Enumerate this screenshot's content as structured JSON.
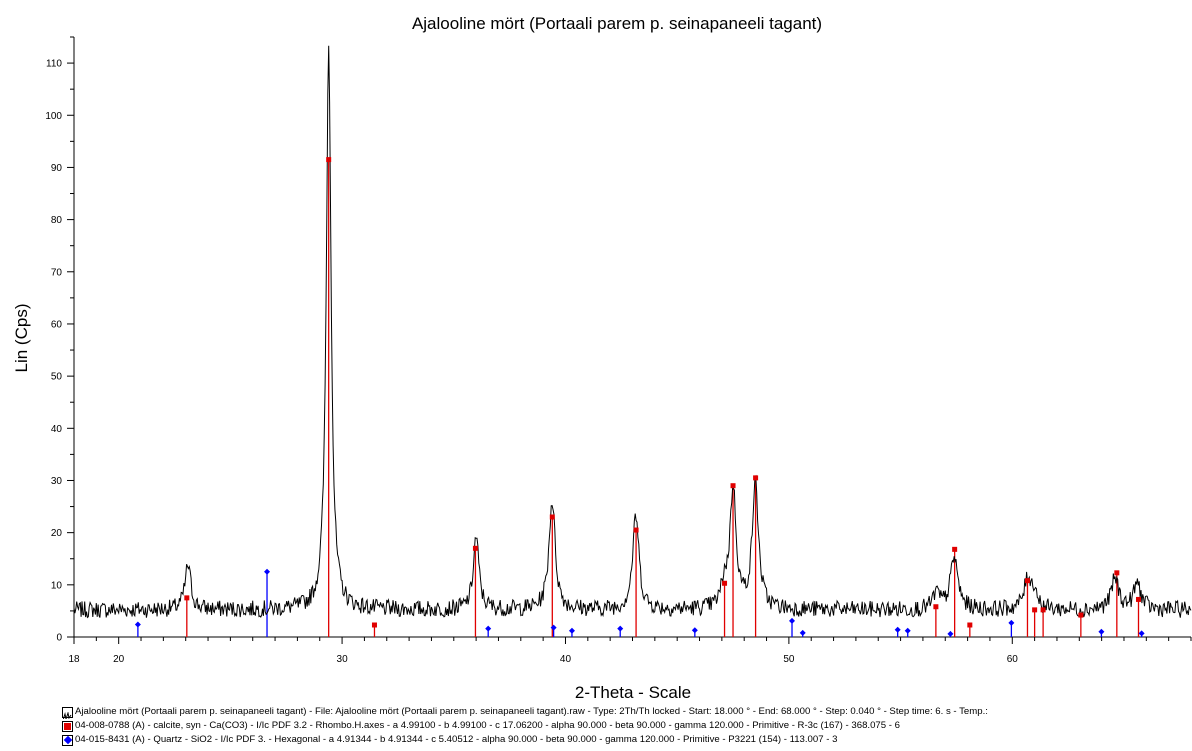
{
  "chart_data": {
    "type": "line",
    "title": "Ajalooline mört (Portaali parem p. seinapaneeli tagant)",
    "xlabel": "2-Theta - Scale",
    "ylabel": "Lin (Cps)",
    "xlim": [
      18,
      68
    ],
    "ylim": [
      0,
      115
    ],
    "x_ticks": [
      18,
      20,
      30,
      40,
      50,
      60
    ],
    "y_ticks": [
      0,
      10,
      20,
      30,
      40,
      50,
      60,
      70,
      80,
      90,
      100,
      110
    ],
    "scan_peaks": [
      [
        23.1,
        8.5,
        0.16
      ],
      [
        29.4,
        108,
        0.13
      ],
      [
        36.0,
        14,
        0.15
      ],
      [
        39.4,
        21,
        0.17
      ],
      [
        43.15,
        18,
        0.17
      ],
      [
        47.1,
        4,
        0.15
      ],
      [
        47.5,
        23,
        0.17
      ],
      [
        48.5,
        24,
        0.17
      ],
      [
        56.6,
        3,
        0.18
      ],
      [
        57.4,
        10,
        0.2
      ],
      [
        60.7,
        6,
        0.2
      ],
      [
        61.0,
        3,
        0.15
      ],
      [
        64.6,
        6,
        0.2
      ],
      [
        65.6,
        5,
        0.2
      ]
    ],
    "scan_baseline": 5.2,
    "scan_step": 0.04,
    "series": [
      {
        "name": "Ajalooline mört (Portaali parem p. seinapaneeli tagant) - File: Ajalooline mört (Portaali parem p. seinapaneeli tagant).raw - Type: 2Th/Th locked - Start: 18.000 ° - End: 68.000 ° - Step: 0.040 ° - Step time: 6. s - Temp.:",
        "kind": "scan",
        "color": "#000000"
      },
      {
        "name": "04-008-0788 (A) - calcite, syn - Ca(CO3) - I/Ic PDF 3.2 - Rhombo.H.axes - a 4.99100 - b 4.99100 - c 17.06200 - alpha 90.000 - beta 90.000 - gamma 120.000 - Primitive - R-3c (167) - 368.075 - 6",
        "kind": "sticks",
        "marker": "square",
        "color": "#e00000",
        "x": [
          23.05,
          29.4,
          31.45,
          35.97,
          39.41,
          43.16,
          47.12,
          47.5,
          48.51,
          56.58,
          57.42,
          58.1,
          60.68,
          61.0,
          61.38,
          63.07,
          64.68,
          65.65
        ],
        "y": [
          7.5,
          91.5,
          2.3,
          17,
          23,
          20.5,
          10.3,
          29,
          30.5,
          5.8,
          16.8,
          2.3,
          10.8,
          5.2,
          5.2,
          4.2,
          12.3,
          7.2
        ]
      },
      {
        "name": "04-015-8431 (A) - Quartz - SiO2 - I/Ic PDF 3. - Hexagonal - a 4.91344 - b 4.91344 - c 5.40512 - alpha 90.000 - beta 90.000 - gamma 120.000 - Primitive - P3221 (154) - 113.007 - 3",
        "kind": "sticks",
        "marker": "diamond",
        "color": "#0000ff",
        "x": [
          20.86,
          26.64,
          36.54,
          39.47,
          40.29,
          42.45,
          45.79,
          50.14,
          50.62,
          54.87,
          55.32,
          57.23,
          59.96,
          63.99,
          65.79
        ],
        "y": [
          2.4,
          12.5,
          1.6,
          1.8,
          1.2,
          1.6,
          1.3,
          3.1,
          0.8,
          1.4,
          1.2,
          0.6,
          2.7,
          1.0,
          0.7
        ]
      }
    ]
  }
}
